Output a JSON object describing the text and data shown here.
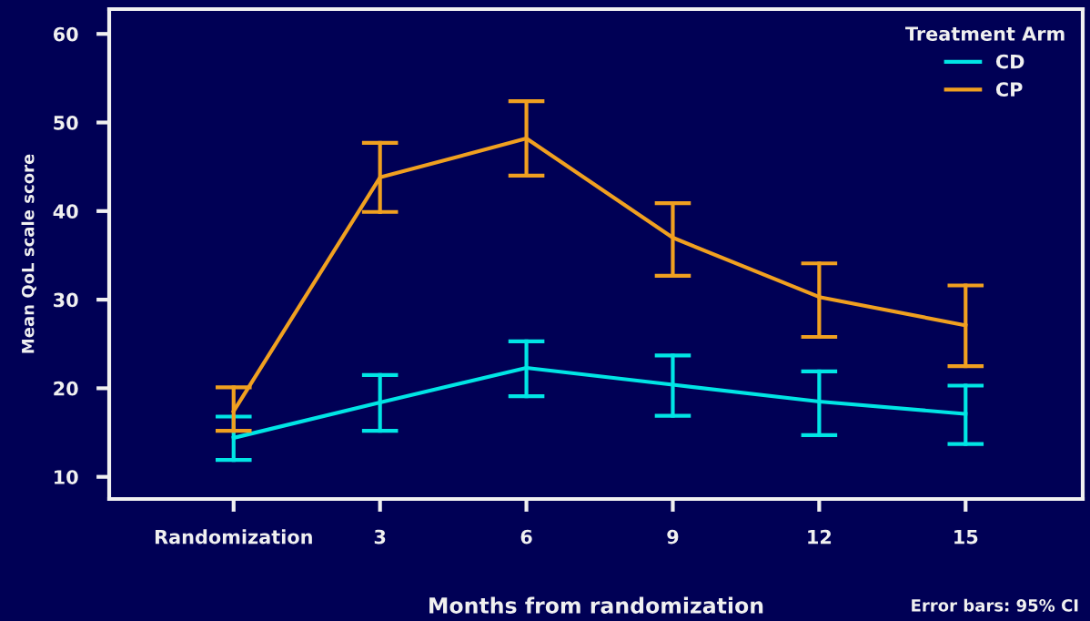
{
  "chart_data": {
    "type": "line",
    "xlabel": "Months from randomization",
    "ylabel": "Mean QoL scale score",
    "legend_title": "Treatment Arm",
    "legend": "top right",
    "grid": false,
    "marker": "none",
    "line_style": "solid",
    "categories": [
      "Randomization",
      "3",
      "6",
      "9",
      "12",
      "15"
    ],
    "ylim": [
      7.5,
      62.8
    ],
    "yticks": [
      10,
      20,
      30,
      40,
      50,
      60
    ],
    "series": [
      {
        "name": "CD",
        "color": "#00e5e5",
        "values": [
          14.4,
          18.4,
          22.3,
          20.4,
          18.5,
          17.1
        ],
        "errors": [
          [
            11.9,
            16.8
          ],
          [
            15.2,
            21.5
          ],
          [
            19.1,
            25.3
          ],
          [
            16.9,
            23.7
          ],
          [
            14.7,
            21.9
          ],
          [
            13.7,
            20.3
          ]
        ]
      },
      {
        "name": "CP",
        "color": "#f0a020",
        "values": [
          17.4,
          43.8,
          48.2,
          37.0,
          30.3,
          27.1
        ],
        "errors": [
          [
            15.2,
            20.1
          ],
          [
            39.9,
            47.7
          ],
          [
            44.0,
            52.4
          ],
          [
            32.7,
            40.9
          ],
          [
            25.8,
            34.1
          ],
          [
            22.5,
            31.6
          ]
        ]
      }
    ],
    "annotations": [
      "Error bars: 95% CI"
    ]
  }
}
